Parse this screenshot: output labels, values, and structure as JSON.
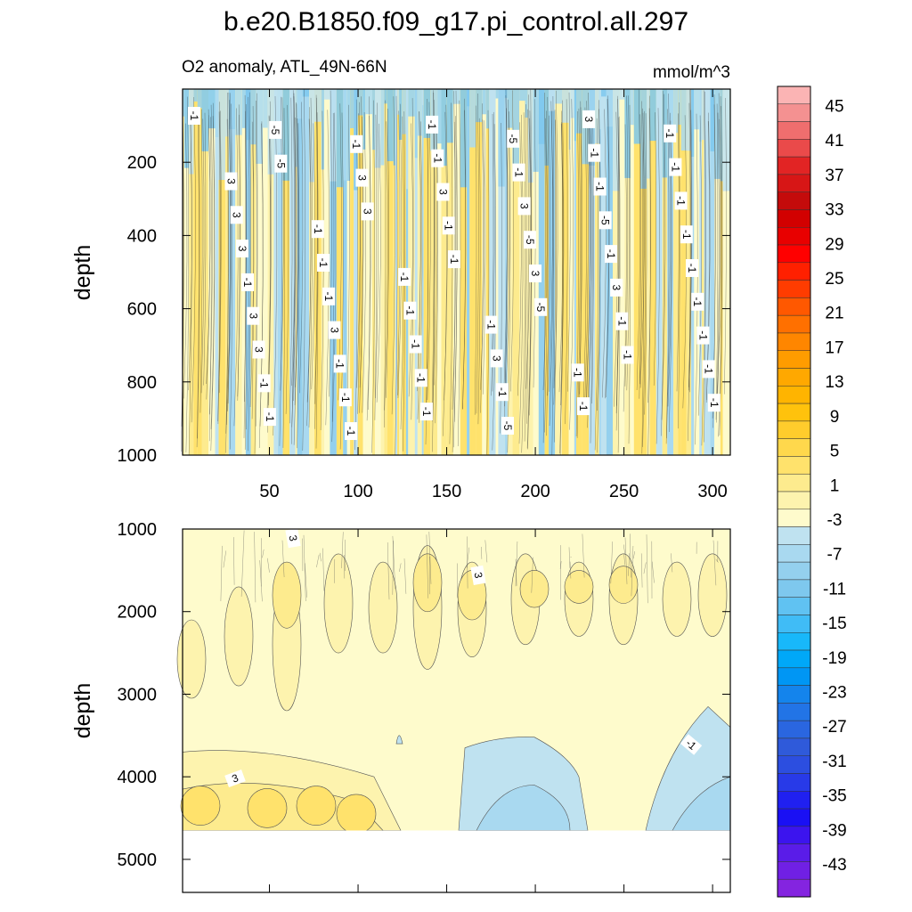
{
  "chart_data": {
    "type": "heatmap",
    "title": "b.e20.B1850.f09_g17.pi_control.all.297",
    "subtitle": "O2 anomaly, ATL_49N-66N",
    "units": "mmol/m^3",
    "xlim": [
      1,
      310
    ],
    "x_ticks": [
      "50",
      "100",
      "150",
      "200",
      "250",
      "300"
    ],
    "x_tick_values": [
      50,
      100,
      150,
      200,
      250,
      300
    ],
    "panels": [
      {
        "name": "upper",
        "ylabel": "depth",
        "ylim": [
          1000,
          0
        ],
        "y_ticks": [
          "200",
          "400",
          "600",
          "800",
          "1000"
        ],
        "y_tick_values": [
          200,
          400,
          600,
          800,
          1000
        ],
        "contour_labels": [
          "-1",
          "-5",
          "3",
          "-1",
          "-5",
          "-1",
          "-1",
          "-5",
          "3",
          "-1",
          "3",
          "-1",
          "-1",
          "-1",
          "-1",
          "3",
          "-5",
          "3",
          "-1",
          "-1",
          "-1",
          "-1",
          "3",
          "-1",
          "-1",
          "3",
          "-1",
          "-1",
          "-1",
          "-5",
          "-1",
          "3",
          "-1",
          "-1",
          "-5",
          "-1",
          "-1",
          "-1",
          "3",
          "-1",
          "-5",
          "-1",
          "-1",
          "3",
          "-1",
          "-1",
          "-1",
          "3",
          "-1",
          "3",
          "-1",
          "-1",
          "3",
          "-1",
          "-1",
          "3",
          "-1",
          "-1",
          "-1",
          "-1"
        ]
      },
      {
        "name": "lower",
        "ylabel": "depth",
        "ylim": [
          5400,
          1000
        ],
        "data_bottom": 4650,
        "y_ticks": [
          "1000",
          "2000",
          "3000",
          "4000",
          "5000"
        ],
        "y_tick_values": [
          1000,
          2000,
          3000,
          4000,
          5000
        ],
        "contour_labels": [
          "3",
          "3",
          "3",
          "-1"
        ]
      }
    ],
    "colorbar": {
      "levels": [
        "45",
        "41",
        "37",
        "33",
        "29",
        "25",
        "21",
        "17",
        "13",
        "9",
        "5",
        "1",
        "-3",
        "-7",
        "-11",
        "-15",
        "-19",
        "-23",
        "-27",
        "-31",
        "-35",
        "-39",
        "-43"
      ],
      "colors": [
        "#fbb4b4",
        "#f49191",
        "#ef6e6e",
        "#ea4a4a",
        "#e22424",
        "#d71616",
        "#c40b0b",
        "#d20000",
        "#e80000",
        "#ff0000",
        "#ff2000",
        "#ff3c00",
        "#ff5800",
        "#ff7000",
        "#ff8600",
        "#ff9c00",
        "#ffa800",
        "#ffb400",
        "#ffc20c",
        "#ffcc2c",
        "#ffd84c",
        "#ffe26c",
        "#fdeb8e",
        "#fdf3ae",
        "#fefbcc",
        "#bfe2f0",
        "#a9d9f0",
        "#94d0ee",
        "#7ec8ee",
        "#60c2f2",
        "#40bcf6",
        "#18b8fa",
        "#00a8f8",
        "#0096f4",
        "#1484ec",
        "#2274e6",
        "#2a66e0",
        "#2f5ada",
        "#2c4ee0",
        "#283ae8",
        "#2020f0",
        "#1a10f4",
        "#3c14ee",
        "#5a1ce8",
        "#7020e4",
        "#8424e0"
      ]
    }
  }
}
